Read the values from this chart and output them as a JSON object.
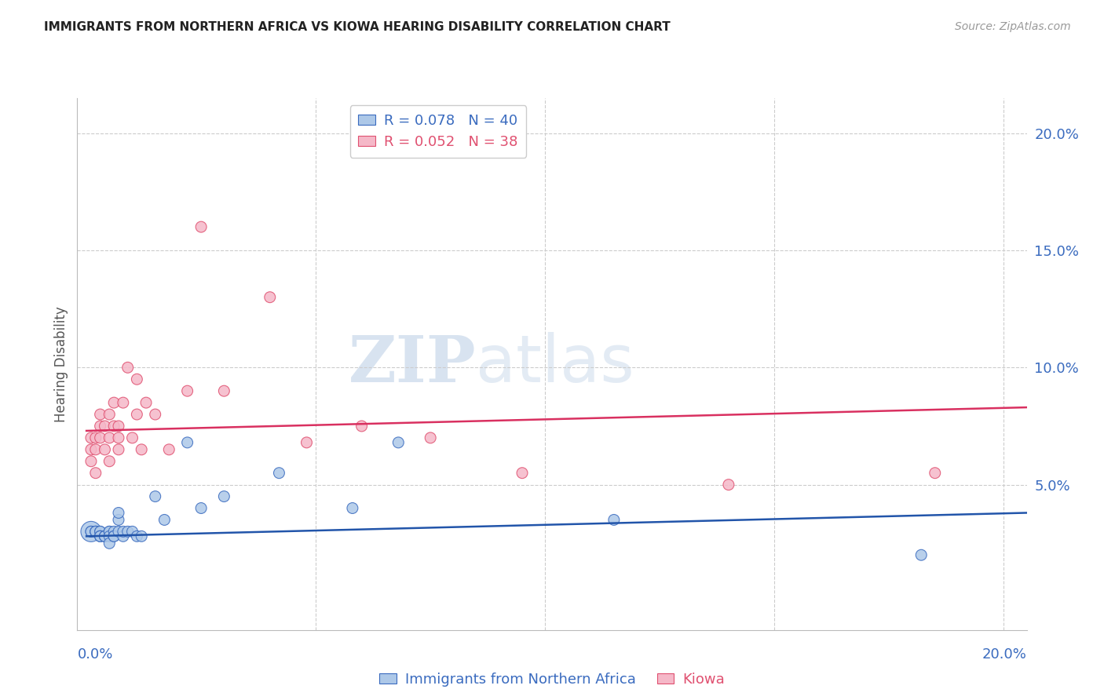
{
  "title": "IMMIGRANTS FROM NORTHERN AFRICA VS KIOWA HEARING DISABILITY CORRELATION CHART",
  "source": "Source: ZipAtlas.com",
  "ylabel": "Hearing Disability",
  "right_yticklabels": [
    "",
    "5.0%",
    "10.0%",
    "15.0%",
    "20.0%"
  ],
  "right_ytick_vals": [
    0.0,
    0.05,
    0.1,
    0.15,
    0.2
  ],
  "watermark_zip": "ZIP",
  "watermark_atlas": "atlas",
  "legend_blue_label": "R = 0.078   N = 40",
  "legend_pink_label": "R = 0.052   N = 38",
  "legend_label_blue": "Immigrants from Northern Africa",
  "legend_label_pink": "Kiowa",
  "blue_face": "#adc8e8",
  "blue_edge": "#3a6bbf",
  "pink_face": "#f5b8c8",
  "pink_edge": "#e05070",
  "blue_line": "#2255aa",
  "pink_line": "#d93060",
  "title_color": "#222222",
  "source_color": "#999999",
  "axis_blue": "#3a6bbf",
  "grid_color": "#cccccc",
  "blue_scatter_x": [
    0.001,
    0.001,
    0.001,
    0.002,
    0.002,
    0.002,
    0.003,
    0.003,
    0.003,
    0.003,
    0.003,
    0.004,
    0.004,
    0.004,
    0.005,
    0.005,
    0.005,
    0.005,
    0.006,
    0.006,
    0.006,
    0.007,
    0.007,
    0.007,
    0.008,
    0.008,
    0.009,
    0.01,
    0.011,
    0.012,
    0.015,
    0.017,
    0.022,
    0.025,
    0.03,
    0.042,
    0.058,
    0.068,
    0.115,
    0.182
  ],
  "blue_scatter_y": [
    0.03,
    0.03,
    0.03,
    0.03,
    0.03,
    0.03,
    0.03,
    0.03,
    0.028,
    0.028,
    0.028,
    0.028,
    0.028,
    0.028,
    0.03,
    0.03,
    0.028,
    0.025,
    0.03,
    0.028,
    0.028,
    0.035,
    0.038,
    0.03,
    0.028,
    0.03,
    0.03,
    0.03,
    0.028,
    0.028,
    0.045,
    0.035,
    0.068,
    0.04,
    0.045,
    0.055,
    0.04,
    0.068,
    0.035,
    0.02
  ],
  "blue_scatter_sz": [
    350,
    100,
    100,
    100,
    100,
    100,
    100,
    100,
    100,
    100,
    100,
    100,
    100,
    100,
    100,
    100,
    100,
    100,
    100,
    100,
    100,
    100,
    100,
    100,
    100,
    100,
    100,
    100,
    100,
    100,
    100,
    100,
    100,
    100,
    100,
    100,
    100,
    100,
    100,
    100
  ],
  "pink_scatter_x": [
    0.001,
    0.001,
    0.001,
    0.002,
    0.002,
    0.002,
    0.003,
    0.003,
    0.003,
    0.004,
    0.004,
    0.005,
    0.005,
    0.005,
    0.006,
    0.006,
    0.007,
    0.007,
    0.007,
    0.008,
    0.009,
    0.01,
    0.011,
    0.011,
    0.012,
    0.013,
    0.015,
    0.018,
    0.022,
    0.025,
    0.03,
    0.04,
    0.048,
    0.06,
    0.075,
    0.095,
    0.14,
    0.185
  ],
  "pink_scatter_y": [
    0.06,
    0.065,
    0.07,
    0.055,
    0.065,
    0.07,
    0.07,
    0.075,
    0.08,
    0.065,
    0.075,
    0.06,
    0.07,
    0.08,
    0.075,
    0.085,
    0.065,
    0.075,
    0.07,
    0.085,
    0.1,
    0.07,
    0.095,
    0.08,
    0.065,
    0.085,
    0.08,
    0.065,
    0.09,
    0.16,
    0.09,
    0.13,
    0.068,
    0.075,
    0.07,
    0.055,
    0.05,
    0.055
  ],
  "pink_scatter_sz": [
    100,
    100,
    100,
    100,
    100,
    100,
    100,
    100,
    100,
    100,
    100,
    100,
    100,
    100,
    100,
    100,
    100,
    100,
    100,
    100,
    100,
    100,
    100,
    100,
    100,
    100,
    100,
    100,
    100,
    100,
    100,
    100,
    100,
    100,
    100,
    100,
    100,
    100
  ],
  "blue_trend_x": [
    0.0,
    0.205
  ],
  "blue_trend_y": [
    0.028,
    0.038
  ],
  "pink_trend_x": [
    0.0,
    0.205
  ],
  "pink_trend_y": [
    0.073,
    0.083
  ],
  "xlim": [
    -0.002,
    0.205
  ],
  "ylim": [
    -0.012,
    0.215
  ]
}
